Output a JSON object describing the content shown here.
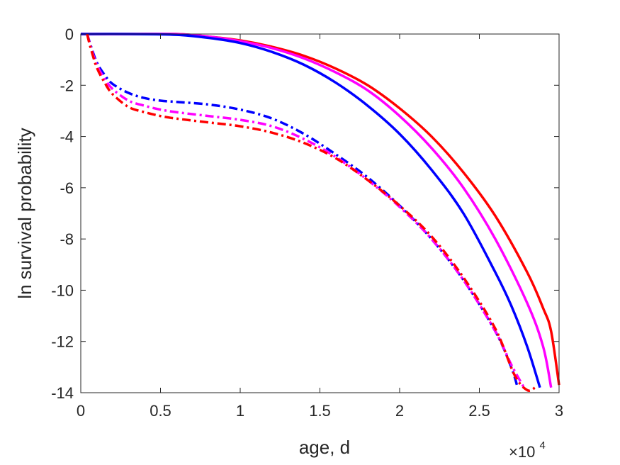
{
  "chart_data": {
    "type": "line",
    "xlabel": "age, d",
    "ylabel": "ln survival probability",
    "x_exponent": {
      "base": "×10",
      "power": "4"
    },
    "xlim": [
      0,
      3
    ],
    "ylim": [
      -14,
      0
    ],
    "xticks": [
      0,
      0.5,
      1,
      1.5,
      2,
      2.5,
      3
    ],
    "xtick_labels": [
      "0",
      "0.5",
      "1",
      "1.5",
      "2",
      "2.5",
      "3"
    ],
    "yticks": [
      0,
      -2,
      -4,
      -6,
      -8,
      -10,
      -12,
      -14
    ],
    "ytick_labels": [
      "0",
      "-2",
      "-4",
      "-6",
      "-8",
      "-10",
      "-12",
      "-14"
    ],
    "grid": false,
    "box": true,
    "series": [
      {
        "color": "#ff0000",
        "style": "solid",
        "x": [
          0,
          0.3,
          0.6,
          0.8,
          1.0,
          1.2,
          1.4,
          1.6,
          1.8,
          2.0,
          2.2,
          2.4,
          2.6,
          2.8,
          2.9,
          2.95,
          3.0
        ],
        "y": [
          0,
          0,
          0,
          -0.1,
          -0.25,
          -0.5,
          -0.85,
          -1.35,
          -2.0,
          -2.9,
          -4.0,
          -5.4,
          -7.1,
          -9.3,
          -10.7,
          -11.6,
          -13.7
        ]
      },
      {
        "color": "#ff00ff",
        "style": "solid",
        "x": [
          0,
          0.3,
          0.6,
          0.8,
          1.0,
          1.2,
          1.4,
          1.6,
          1.8,
          2.0,
          2.2,
          2.4,
          2.6,
          2.8,
          2.9,
          2.95
        ],
        "y": [
          0,
          0,
          0,
          -0.1,
          -0.28,
          -0.55,
          -0.95,
          -1.5,
          -2.2,
          -3.2,
          -4.45,
          -6.0,
          -8.0,
          -10.5,
          -12.2,
          -13.8
        ]
      },
      {
        "color": "#0000ff",
        "style": "solid",
        "x": [
          0,
          0.3,
          0.6,
          0.8,
          1.0,
          1.2,
          1.4,
          1.6,
          1.8,
          2.0,
          2.2,
          2.4,
          2.6,
          2.7,
          2.8,
          2.88
        ],
        "y": [
          0,
          0,
          -0.03,
          -0.15,
          -0.35,
          -0.7,
          -1.2,
          -1.9,
          -2.8,
          -3.9,
          -5.3,
          -7.0,
          -9.3,
          -10.6,
          -12.2,
          -13.8
        ]
      },
      {
        "color": "#0000ff",
        "style": "dashdot",
        "x": [
          0.04,
          0.06,
          0.1,
          0.15,
          0.2,
          0.3,
          0.4,
          0.5,
          0.6,
          0.8,
          1.0,
          1.2,
          1.4,
          1.6,
          1.8,
          2.0,
          2.2,
          2.4,
          2.6,
          2.7,
          2.74
        ],
        "y": [
          0,
          -0.4,
          -1.1,
          -1.6,
          -1.95,
          -2.3,
          -2.5,
          -2.6,
          -2.65,
          -2.75,
          -2.95,
          -3.3,
          -3.9,
          -4.7,
          -5.6,
          -6.7,
          -8.0,
          -9.6,
          -11.6,
          -13.0,
          -13.8
        ]
      },
      {
        "color": "#ff00ff",
        "style": "dashdot",
        "x": [
          0.04,
          0.06,
          0.1,
          0.15,
          0.2,
          0.3,
          0.4,
          0.5,
          0.6,
          0.8,
          1.0,
          1.2,
          1.4,
          1.6,
          1.8,
          2.0,
          2.2,
          2.4,
          2.6,
          2.7,
          2.78
        ],
        "y": [
          0,
          -0.45,
          -1.2,
          -1.75,
          -2.15,
          -2.6,
          -2.8,
          -2.95,
          -3.05,
          -3.2,
          -3.35,
          -3.6,
          -4.1,
          -4.8,
          -5.7,
          -6.75,
          -8.0,
          -9.6,
          -11.6,
          -12.9,
          -13.8
        ]
      },
      {
        "color": "#ff0000",
        "style": "dashdot",
        "x": [
          0.04,
          0.06,
          0.1,
          0.15,
          0.2,
          0.3,
          0.4,
          0.5,
          0.6,
          0.8,
          1.0,
          1.2,
          1.4,
          1.6,
          1.8,
          2.0,
          2.2,
          2.4,
          2.6,
          2.72,
          2.8,
          2.85
        ],
        "y": [
          0,
          -0.5,
          -1.3,
          -1.9,
          -2.35,
          -2.85,
          -3.05,
          -3.2,
          -3.3,
          -3.45,
          -3.6,
          -3.85,
          -4.25,
          -4.85,
          -5.7,
          -6.7,
          -7.9,
          -9.5,
          -11.5,
          -13.3,
          -13.9,
          -13.8
        ]
      }
    ]
  }
}
